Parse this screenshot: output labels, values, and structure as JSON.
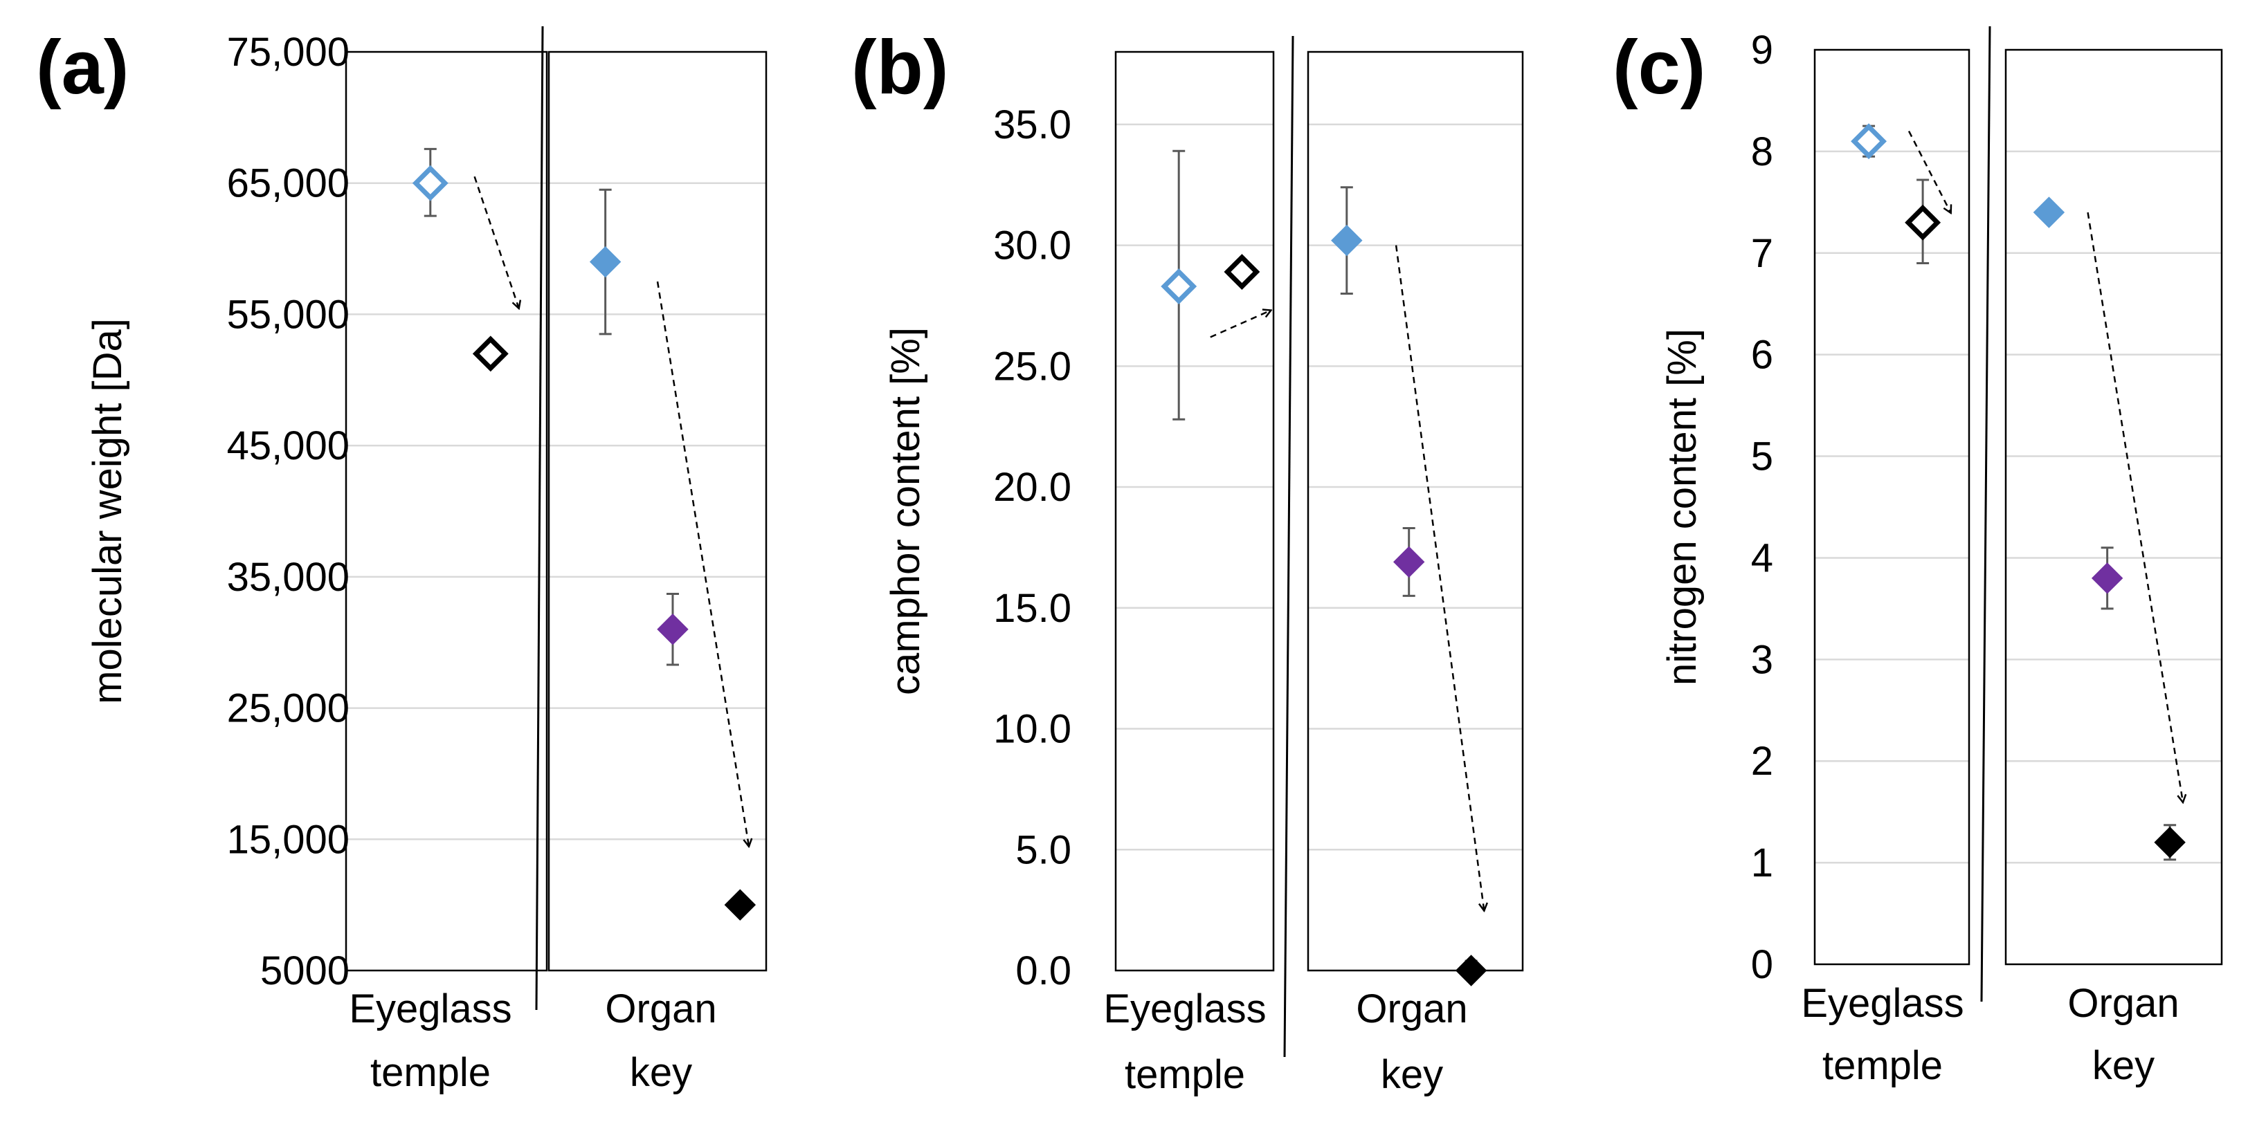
{
  "figure": {
    "point_colors": {
      "blue": "#5b9bd5",
      "purple": "#7030a0",
      "black": "#000000"
    }
  },
  "chart_data": [
    {
      "panel_label": "(a)",
      "type": "scatter",
      "ylabel": "molecular weight [Da]",
      "ylim": [
        5000,
        75000
      ],
      "yticks": [
        5000,
        15000,
        25000,
        35000,
        45000,
        55000,
        65000,
        75000
      ],
      "ytick_labels": [
        "5000",
        "15,000",
        "25,000",
        "35,000",
        "45,000",
        "55,000",
        "65,000",
        "75,000"
      ],
      "groups": [
        {
          "line1": "Eyeglass",
          "line2": "temple"
        },
        {
          "line1": "Organ",
          "line2": "key"
        }
      ],
      "points": [
        {
          "name": "eyeglass-before",
          "group": 0,
          "pos": 0.42,
          "value": 65000,
          "err": [
            62500,
            67600
          ],
          "color": "blue",
          "filled": false
        },
        {
          "name": "eyeglass-after",
          "group": 0,
          "pos": 0.72,
          "value": 52000,
          "err": [
            51500,
            52500
          ],
          "color": "black",
          "filled": false
        },
        {
          "name": "organ-key-1",
          "group": 1,
          "pos": 0.26,
          "value": 59000,
          "err": [
            53500,
            64500
          ],
          "color": "blue",
          "filled": true
        },
        {
          "name": "organ-key-2",
          "group": 1,
          "pos": 0.57,
          "value": 31000,
          "err": [
            28300,
            33700
          ],
          "color": "purple",
          "filled": true
        },
        {
          "name": "organ-key-3",
          "group": 1,
          "pos": 0.88,
          "value": 10000,
          "err": null,
          "color": "black",
          "filled": true
        }
      ],
      "arrows": [
        {
          "group": 0,
          "x1": 0.64,
          "y1": 65500,
          "x2": 0.86,
          "y2": 55500
        },
        {
          "group": 1,
          "x1": 0.5,
          "y1": 57500,
          "x2": 0.92,
          "y2": 14500
        }
      ]
    },
    {
      "panel_label": "(b)",
      "type": "scatter",
      "ylabel": "camphor content [%]",
      "ylim": [
        0,
        38
      ],
      "yticks": [
        0,
        5,
        10,
        15,
        20,
        25,
        30,
        35
      ],
      "ytick_labels": [
        "0.0",
        "5.0",
        "10.0",
        "15.0",
        "20.0",
        "25.0",
        "30.0",
        "35.0"
      ],
      "groups": [
        {
          "line1": "Eyeglass",
          "line2": "temple"
        },
        {
          "line1": "Organ",
          "line2": "key"
        }
      ],
      "points": [
        {
          "name": "eyeglass-before",
          "group": 0,
          "pos": 0.4,
          "value": 28.3,
          "err": [
            22.8,
            33.9
          ],
          "color": "blue",
          "filled": false
        },
        {
          "name": "eyeglass-after",
          "group": 0,
          "pos": 0.8,
          "value": 28.9,
          "err": [
            28.6,
            29.2
          ],
          "color": "black",
          "filled": false
        },
        {
          "name": "organ-key-1",
          "group": 1,
          "pos": 0.18,
          "value": 30.2,
          "err": [
            28.0,
            32.4
          ],
          "color": "blue",
          "filled": true
        },
        {
          "name": "organ-key-2",
          "group": 1,
          "pos": 0.47,
          "value": 16.9,
          "err": [
            15.5,
            18.3
          ],
          "color": "purple",
          "filled": true
        },
        {
          "name": "organ-key-3",
          "group": 1,
          "pos": 0.76,
          "value": 0.0,
          "err": [
            0.0,
            0.4
          ],
          "color": "black",
          "filled": true
        }
      ],
      "arrows": [
        {
          "group": 0,
          "x1": 0.6,
          "y1": 26.2,
          "x2": 0.98,
          "y2": 27.3
        },
        {
          "group": 1,
          "x1": 0.41,
          "y1": 30.0,
          "x2": 0.82,
          "y2": 2.5
        }
      ]
    },
    {
      "panel_label": "(c)",
      "type": "scatter",
      "ylabel": "nitrogen content [%]",
      "ylim": [
        0,
        9
      ],
      "yticks": [
        0,
        1,
        2,
        3,
        4,
        5,
        6,
        7,
        8,
        9
      ],
      "ytick_labels": [
        "0",
        "1",
        "2",
        "3",
        "4",
        "5",
        "6",
        "7",
        "8",
        "9"
      ],
      "groups": [
        {
          "line1": "Eyeglass",
          "line2": "temple"
        },
        {
          "line1": "Organ",
          "line2": "key"
        }
      ],
      "points": [
        {
          "name": "eyeglass-before",
          "group": 0,
          "pos": 0.35,
          "value": 8.1,
          "err": [
            7.95,
            8.25
          ],
          "color": "blue",
          "filled": false
        },
        {
          "name": "eyeglass-after",
          "group": 0,
          "pos": 0.7,
          "value": 7.3,
          "err": [
            6.9,
            7.72
          ],
          "color": "black",
          "filled": false
        },
        {
          "name": "organ-key-1",
          "group": 1,
          "pos": 0.2,
          "value": 7.4,
          "err": null,
          "color": "blue",
          "filled": true
        },
        {
          "name": "organ-key-2",
          "group": 1,
          "pos": 0.47,
          "value": 3.8,
          "err": [
            3.5,
            4.1
          ],
          "color": "purple",
          "filled": true
        },
        {
          "name": "organ-key-3",
          "group": 1,
          "pos": 0.76,
          "value": 1.2,
          "err": [
            1.03,
            1.37
          ],
          "color": "black",
          "filled": true
        }
      ],
      "arrows": [
        {
          "group": 0,
          "x1": 0.61,
          "y1": 8.2,
          "x2": 0.88,
          "y2": 7.4
        },
        {
          "group": 1,
          "x1": 0.38,
          "y1": 7.4,
          "x2": 0.82,
          "y2": 1.6
        }
      ]
    }
  ]
}
